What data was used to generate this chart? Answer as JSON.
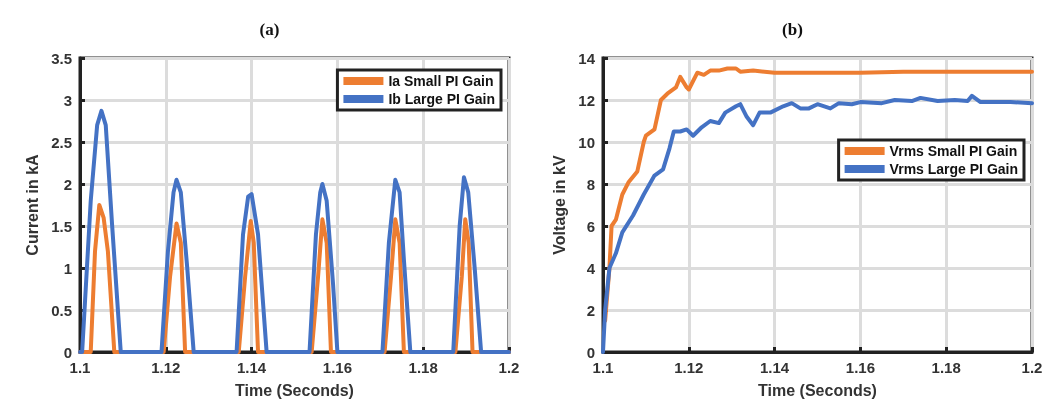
{
  "chart_data": [
    {
      "type": "line",
      "title": "(a)",
      "xlabel": "Time (Seconds)",
      "ylabel": "Current in kA",
      "xlim": [
        1.1,
        1.2
      ],
      "xticks": [
        1.1,
        1.12,
        1.14,
        1.16,
        1.18,
        1.2
      ],
      "ylim": [
        0,
        3.5
      ],
      "yticks": [
        0,
        0.5,
        1,
        1.5,
        2,
        2.5,
        3,
        3.5
      ],
      "grid": true,
      "legend": "top right",
      "marker": "none",
      "line_style": "solid",
      "series": [
        {
          "name": "Ia Small PI Gain",
          "color": "#ed7d31",
          "x": [
            1.1,
            1.1025,
            1.1035,
            1.1045,
            1.1055,
            1.1065,
            1.108,
            1.1195,
            1.121,
            1.1225,
            1.1235,
            1.1245,
            1.137,
            1.1385,
            1.1398,
            1.1405,
            1.1415,
            1.154,
            1.1555,
            1.1565,
            1.1575,
            1.1585,
            1.171,
            1.1725,
            1.1735,
            1.1745,
            1.1755,
            1.1875,
            1.189,
            1.1898,
            1.1906,
            1.1915,
            1.2
          ],
          "values": [
            0,
            0,
            1.2,
            1.75,
            1.6,
            1.2,
            0,
            0,
            0.9,
            1.53,
            1.3,
            0,
            0,
            0.9,
            1.56,
            1.3,
            0,
            0,
            0.9,
            1.58,
            1.3,
            0,
            0,
            0.9,
            1.58,
            1.3,
            0,
            0,
            0.9,
            1.58,
            1.3,
            0,
            0
          ]
        },
        {
          "name": "Ib Large PI Gain",
          "color": "#4472c4",
          "x": [
            1.1,
            1.1005,
            1.1025,
            1.104,
            1.105,
            1.106,
            1.1075,
            1.1095,
            1.119,
            1.1205,
            1.1218,
            1.1225,
            1.1235,
            1.125,
            1.1265,
            1.1365,
            1.138,
            1.1392,
            1.14,
            1.1415,
            1.1435,
            1.1535,
            1.155,
            1.156,
            1.1565,
            1.1575,
            1.159,
            1.16,
            1.1705,
            1.172,
            1.1735,
            1.1745,
            1.1755,
            1.177,
            1.187,
            1.1885,
            1.1895,
            1.1905,
            1.192,
            1.1935,
            1.2
          ],
          "values": [
            0,
            0,
            1.8,
            2.7,
            2.87,
            2.7,
            1.5,
            0,
            0,
            1.2,
            1.9,
            2.05,
            1.9,
            1,
            0,
            0,
            1.4,
            1.85,
            1.88,
            1.4,
            0,
            0,
            1.4,
            1.9,
            2,
            1.8,
            0.8,
            0,
            0,
            1.3,
            2.05,
            1.9,
            1.1,
            0,
            0,
            1.5,
            2.08,
            1.9,
            1,
            0,
            0
          ]
        }
      ]
    },
    {
      "type": "line",
      "title": "(b)",
      "xlabel": "Time (Seconds)",
      "ylabel": "Voltage in kV",
      "xlim": [
        1.1,
        1.2
      ],
      "xticks": [
        1.1,
        1.12,
        1.14,
        1.16,
        1.18,
        1.2
      ],
      "ylim": [
        0,
        14
      ],
      "yticks": [
        0,
        2,
        4,
        6,
        8,
        10,
        12,
        14
      ],
      "grid": true,
      "legend": "right",
      "marker": "none",
      "line_style": "solid",
      "series": [
        {
          "name": "Vrms Small PI Gain",
          "color": "#ed7d31",
          "x": [
            1.1005,
            1.1015,
            1.102,
            1.103,
            1.1045,
            1.106,
            1.108,
            1.1095,
            1.11,
            1.112,
            1.1135,
            1.115,
            1.117,
            1.118,
            1.1195,
            1.12,
            1.122,
            1.1235,
            1.125,
            1.127,
            1.129,
            1.131,
            1.132,
            1.135,
            1.14,
            1.15,
            1.16,
            1.17,
            1.18,
            1.19,
            1.2
          ],
          "values": [
            1.5,
            4,
            6,
            6.3,
            7.5,
            8.1,
            8.6,
            10,
            10.3,
            10.6,
            12,
            12.3,
            12.6,
            13.1,
            12.6,
            12.5,
            13.3,
            13.2,
            13.4,
            13.4,
            13.5,
            13.5,
            13.35,
            13.4,
            13.3,
            13.3,
            13.3,
            13.35,
            13.35,
            13.35,
            13.35
          ]
        },
        {
          "name": "Vrms Large PI Gain",
          "color": "#4472c4",
          "x": [
            1.1,
            1.1005,
            1.1015,
            1.103,
            1.1045,
            1.107,
            1.1095,
            1.112,
            1.114,
            1.1155,
            1.1165,
            1.118,
            1.1195,
            1.121,
            1.123,
            1.125,
            1.127,
            1.1285,
            1.131,
            1.132,
            1.1335,
            1.135,
            1.1365,
            1.139,
            1.142,
            1.144,
            1.146,
            1.148,
            1.15,
            1.153,
            1.155,
            1.158,
            1.16,
            1.165,
            1.168,
            1.172,
            1.174,
            1.178,
            1.182,
            1.185,
            1.186,
            1.188,
            1.195,
            1.2
          ],
          "values": [
            0,
            2,
            4,
            4.7,
            5.7,
            6.5,
            7.5,
            8.4,
            8.7,
            9.7,
            10.5,
            10.5,
            10.6,
            10.3,
            10.7,
            11,
            10.9,
            11.4,
            11.7,
            11.8,
            11.2,
            10.8,
            11.4,
            11.4,
            11.7,
            11.85,
            11.6,
            11.6,
            11.8,
            11.6,
            11.85,
            11.8,
            11.9,
            11.85,
            12,
            11.95,
            12.1,
            11.95,
            12,
            11.95,
            12.2,
            11.9,
            11.9,
            11.85
          ]
        }
      ]
    }
  ]
}
